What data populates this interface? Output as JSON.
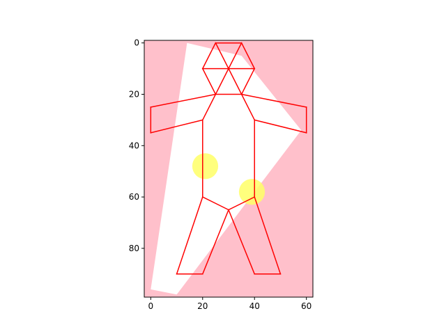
{
  "chart_data": {
    "type": "image-plot",
    "title": "",
    "xlabel": "",
    "ylabel": "",
    "xlim": [
      -2.5,
      62.5
    ],
    "ylim": [
      99,
      -1
    ],
    "y_inverted": true,
    "grid": false,
    "xticks": [
      0,
      20,
      40,
      60
    ],
    "yticks": [
      0,
      20,
      40,
      60,
      80
    ],
    "background_color": "#ffc0cb",
    "white_region": [
      [
        14,
        0
      ],
      [
        35,
        5
      ],
      [
        58,
        34
      ],
      [
        10,
        98
      ],
      [
        0,
        96
      ]
    ],
    "figure_segments": [
      [
        [
          25,
          0
        ],
        [
          35,
          0
        ]
      ],
      [
        [
          25,
          0
        ],
        [
          20,
          10
        ]
      ],
      [
        [
          35,
          0
        ],
        [
          40,
          10
        ]
      ],
      [
        [
          20,
          10
        ],
        [
          40,
          10
        ]
      ],
      [
        [
          20,
          10
        ],
        [
          25,
          20
        ]
      ],
      [
        [
          40,
          10
        ],
        [
          35,
          20
        ]
      ],
      [
        [
          25,
          0
        ],
        [
          35,
          20
        ]
      ],
      [
        [
          35,
          0
        ],
        [
          25,
          20
        ]
      ],
      [
        [
          25,
          20
        ],
        [
          35,
          20
        ]
      ],
      [
        [
          25,
          20
        ],
        [
          0,
          25
        ]
      ],
      [
        [
          0,
          25
        ],
        [
          0,
          35
        ]
      ],
      [
        [
          0,
          35
        ],
        [
          20,
          30
        ]
      ],
      [
        [
          35,
          20
        ],
        [
          60,
          25
        ]
      ],
      [
        [
          60,
          25
        ],
        [
          60,
          35
        ]
      ],
      [
        [
          60,
          35
        ],
        [
          40,
          30
        ]
      ],
      [
        [
          25,
          20
        ],
        [
          20,
          30
        ]
      ],
      [
        [
          35,
          20
        ],
        [
          40,
          30
        ]
      ],
      [
        [
          20,
          30
        ],
        [
          20,
          60
        ]
      ],
      [
        [
          40,
          30
        ],
        [
          40,
          60
        ]
      ],
      [
        [
          20,
          60
        ],
        [
          10,
          90
        ]
      ],
      [
        [
          10,
          90
        ],
        [
          20,
          90
        ]
      ],
      [
        [
          20,
          90
        ],
        [
          30,
          65
        ]
      ],
      [
        [
          40,
          60
        ],
        [
          50,
          90
        ]
      ],
      [
        [
          50,
          90
        ],
        [
          40,
          90
        ]
      ],
      [
        [
          40,
          90
        ],
        [
          30,
          65
        ]
      ],
      [
        [
          20,
          60
        ],
        [
          30,
          65
        ]
      ],
      [
        [
          30,
          65
        ],
        [
          40,
          60
        ]
      ]
    ],
    "line_color": "#ff0000",
    "circles": [
      {
        "x": 21,
        "y": 48,
        "r": 5,
        "color": "#ffff66"
      },
      {
        "x": 39,
        "y": 58,
        "r": 5,
        "color": "#ffff66"
      }
    ]
  }
}
